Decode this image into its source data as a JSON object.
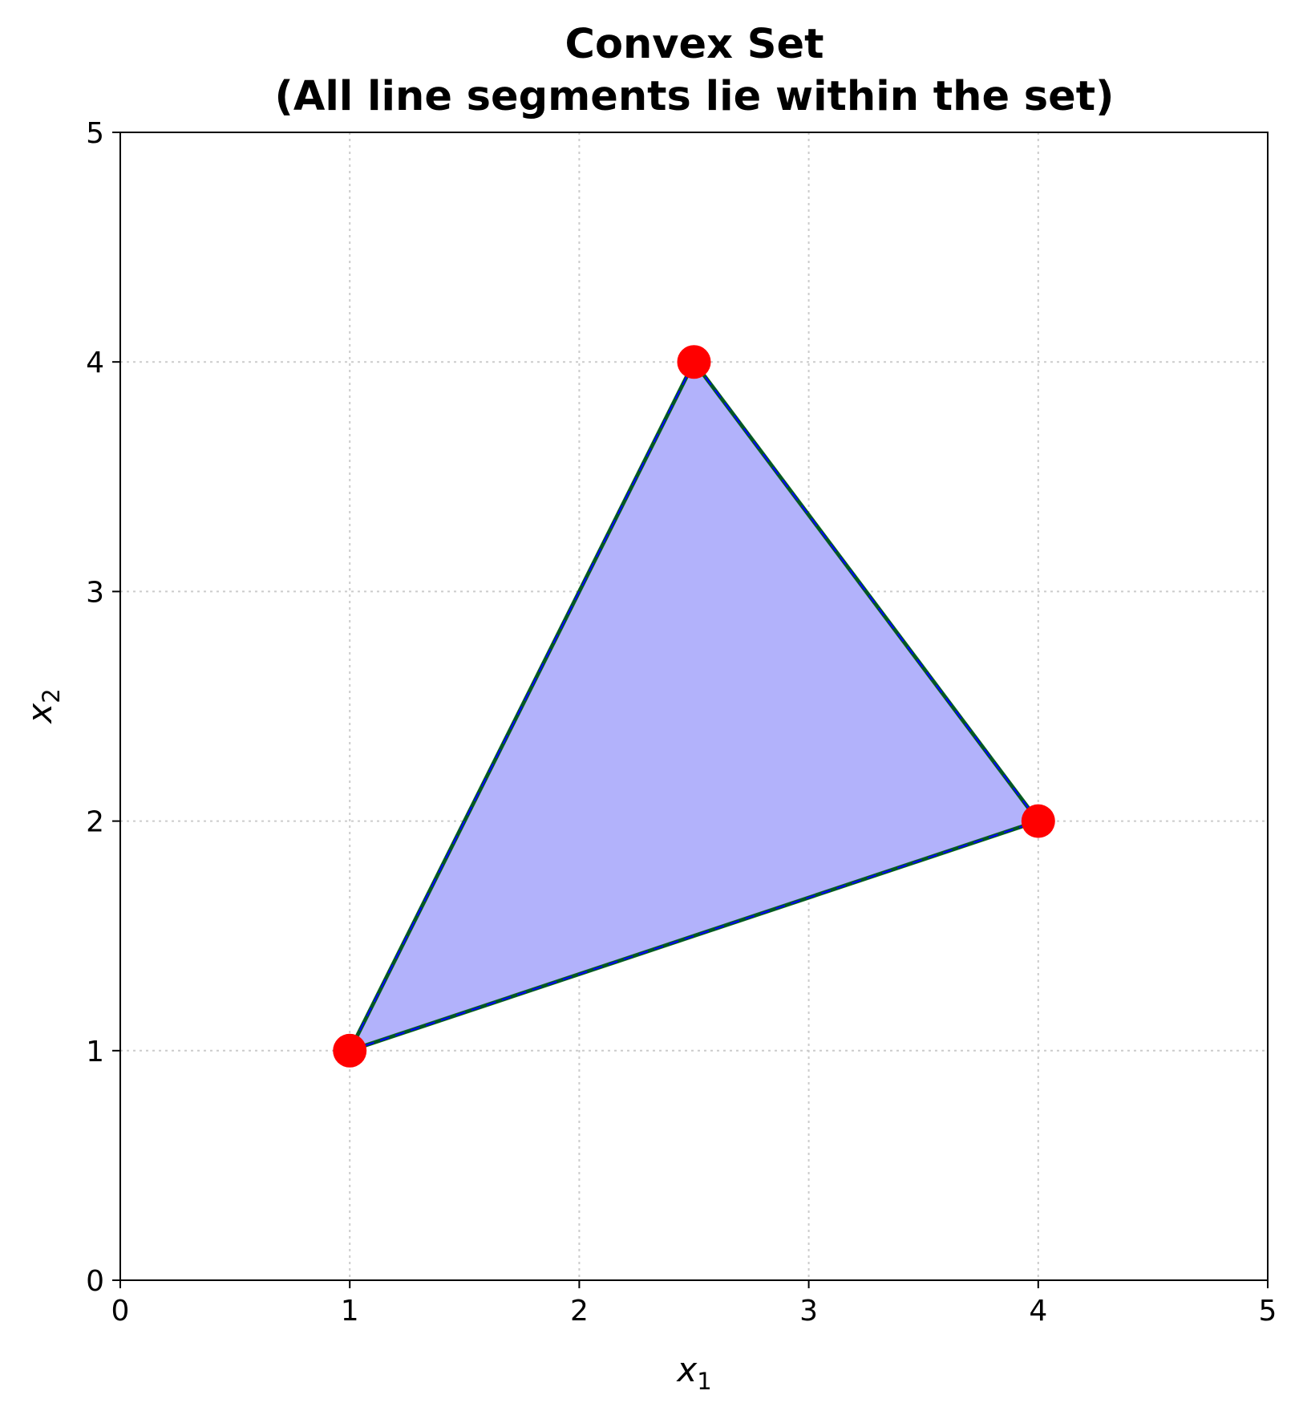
{
  "chart_data": {
    "type": "scatter",
    "title_line1": "Convex Set",
    "title_line2": "(All line segments lie within the set)",
    "xlabel": "x",
    "xlabel_sub": "1",
    "ylabel": "x",
    "ylabel_sub": "2",
    "xlim": [
      0,
      5
    ],
    "ylim": [
      0,
      5
    ],
    "xticks": [
      "0",
      "1",
      "2",
      "3",
      "4",
      "5"
    ],
    "yticks": [
      "0",
      "1",
      "2",
      "3",
      "4",
      "5"
    ],
    "grid": true,
    "vertices": [
      {
        "x": 1,
        "y": 1
      },
      {
        "x": 4,
        "y": 2
      },
      {
        "x": 2.5,
        "y": 4
      }
    ],
    "segments": [
      {
        "from": [
          1,
          1
        ],
        "to": [
          4,
          2
        ]
      },
      {
        "from": [
          4,
          2
        ],
        "to": [
          2.5,
          4
        ]
      },
      {
        "from": [
          2.5,
          4
        ],
        "to": [
          1,
          1
        ]
      }
    ],
    "colors": {
      "fill": "#b2b2fb",
      "edge": "#0000ff",
      "segment": "#006400",
      "vertex": "#ff0000",
      "grid": "#cccccc"
    }
  }
}
